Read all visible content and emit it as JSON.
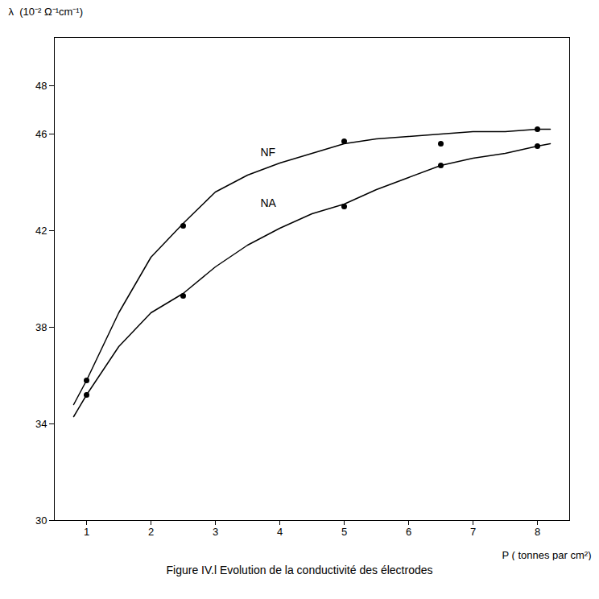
{
  "chart_data": {
    "type": "line",
    "title": "Figure  IV.l  Evolution  de  la  conductivité  des  électrodes",
    "xlabel": "P ( tonnes par cm²)",
    "ylabel": "λ  (10⁻² Ω⁻¹cm⁻¹)",
    "xlim": [
      0.5,
      8.5
    ],
    "ylim": [
      30,
      50
    ],
    "xticks": [
      1,
      2,
      3,
      4,
      5,
      6,
      7,
      8
    ],
    "yticks": [
      30,
      34,
      38,
      42,
      46,
      48
    ],
    "series": [
      {
        "type": "line",
        "color": "#000000",
        "x": [
          0.8,
          1.0,
          1.5,
          2.0,
          2.5,
          3.0,
          3.5,
          4.0,
          4.5,
          5.0,
          5.5,
          6.0,
          6.5,
          7.0,
          7.5,
          8.0,
          8.2
        ],
        "values": [
          34.8,
          35.8,
          38.6,
          40.9,
          42.3,
          43.6,
          44.3,
          44.8,
          45.2,
          45.6,
          45.8,
          45.9,
          46.0,
          46.1,
          46.1,
          46.2,
          46.2
        ]
      },
      {
        "type": "line",
        "color": "#000000",
        "x": [
          0.8,
          1.0,
          1.5,
          2.0,
          2.5,
          3.0,
          3.5,
          4.0,
          4.5,
          5.0,
          5.5,
          6.0,
          6.5,
          7.0,
          7.5,
          8.0,
          8.2
        ],
        "values": [
          34.3,
          35.2,
          37.2,
          38.6,
          39.4,
          40.5,
          41.4,
          42.1,
          42.7,
          43.1,
          43.7,
          44.2,
          44.7,
          45.0,
          45.2,
          45.5,
          45.6
        ]
      },
      {
        "type": "scatter",
        "color": "#000000",
        "x": [
          1.0,
          2.5,
          5.0,
          6.5,
          8.0
        ],
        "values": [
          35.8,
          42.2,
          45.7,
          45.6,
          46.2
        ]
      },
      {
        "type": "scatter",
        "color": "#000000",
        "x": [
          1.0,
          2.5,
          5.0,
          6.5,
          8.0
        ],
        "values": [
          35.2,
          39.3,
          43.0,
          44.7,
          45.5
        ]
      }
    ],
    "annotations": [
      {
        "text": "NF",
        "x": 3.7,
        "y": 45.1,
        "color": "#000000"
      },
      {
        "text": "NA",
        "x": 3.7,
        "y": 43.0,
        "color": "#000000"
      }
    ]
  }
}
